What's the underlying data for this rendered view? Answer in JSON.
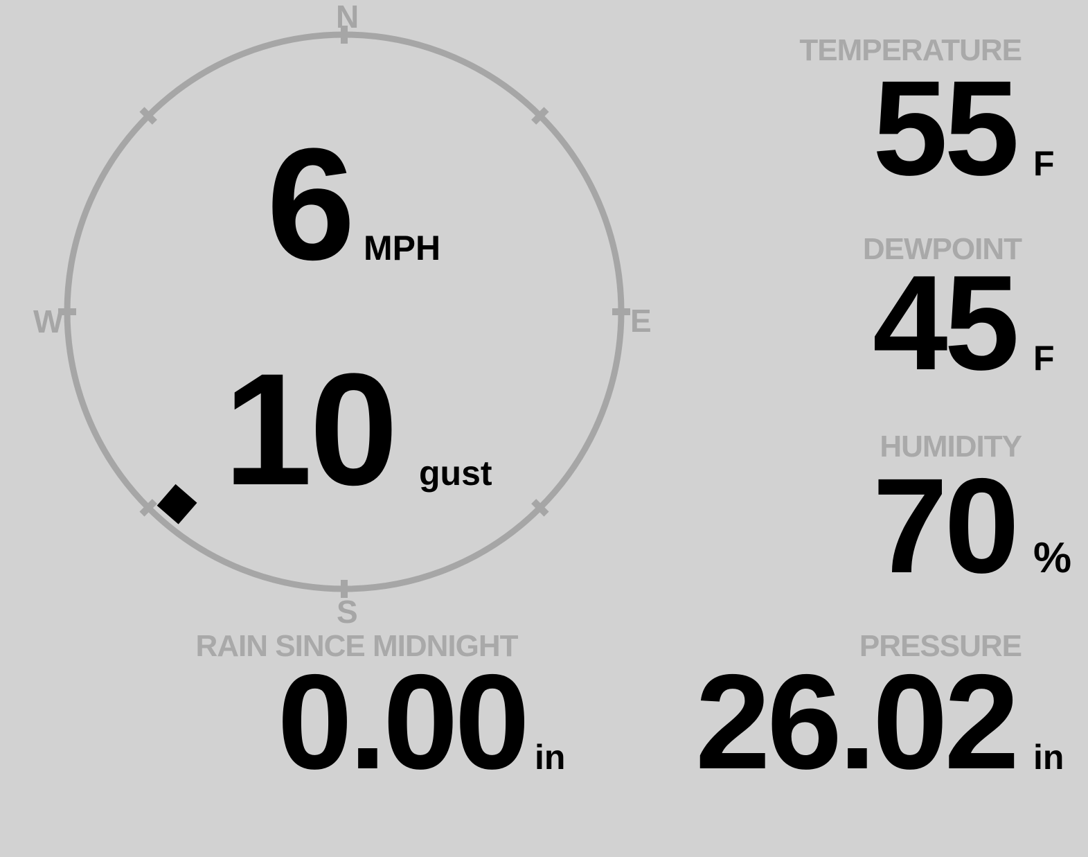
{
  "colors": {
    "background": "#d2d2d2",
    "muted_gray": "#a9a9a9",
    "ring_gray": "#a6a6a6",
    "value_black": "#000000"
  },
  "compass": {
    "north": "N",
    "east": "E",
    "south": "S",
    "west": "W",
    "wind_direction_deg": 221
  },
  "wind": {
    "speed": "6",
    "speed_unit": "MPH",
    "gust": "10",
    "gust_unit": "gust"
  },
  "metrics": {
    "temperature": {
      "label": "TEMPERATURE",
      "value": "55",
      "unit": "F"
    },
    "dewpoint": {
      "label": "DEWPOINT",
      "value": "45",
      "unit": "F"
    },
    "humidity": {
      "label": "HUMIDITY",
      "value": "70",
      "unit": "%"
    },
    "rain": {
      "label": "RAIN SINCE MIDNIGHT",
      "value": "0.00",
      "unit": "in"
    },
    "pressure": {
      "label": "PRESSURE",
      "value": "26.02",
      "unit": "in"
    }
  }
}
